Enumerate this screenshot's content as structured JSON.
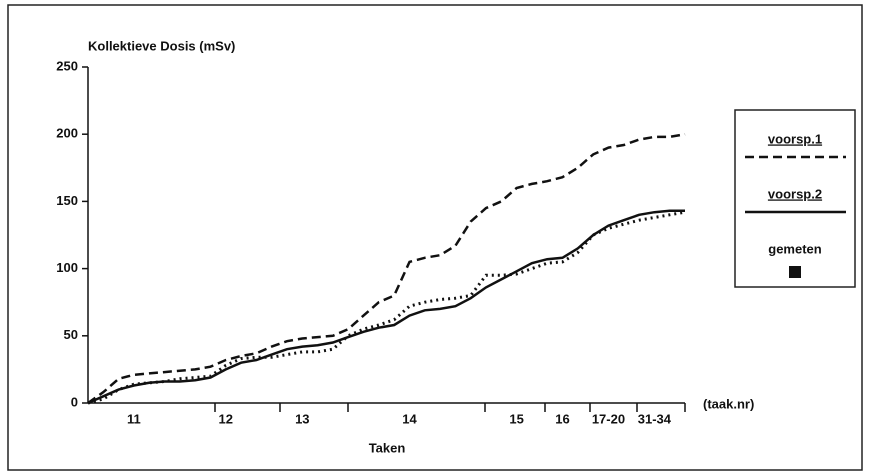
{
  "chart_data": {
    "type": "line",
    "title": "Kollektieve Dosis (mSv)",
    "x_label": "Taken",
    "x_unit_label": "(taak.nr)",
    "categories": [
      null,
      null,
      null,
      "11",
      null,
      null,
      null,
      null,
      null,
      "12",
      null,
      null,
      null,
      null,
      "13",
      null,
      null,
      null,
      null,
      null,
      null,
      "14",
      null,
      null,
      null,
      null,
      null,
      null,
      "15",
      null,
      null,
      "16",
      null,
      null,
      "17-20",
      null,
      null,
      "31-34",
      null,
      null
    ],
    "series": [
      {
        "name": "voorsp.1",
        "color": "#111111",
        "style": "dashed",
        "values": [
          0,
          8,
          18,
          21,
          22,
          23,
          24,
          25,
          27,
          32,
          35,
          37,
          42,
          46,
          48,
          49,
          50,
          55,
          65,
          75,
          80,
          105,
          108,
          110,
          117,
          135,
          145,
          150,
          160,
          163,
          165,
          168,
          175,
          185,
          190,
          192,
          196,
          198,
          198,
          200
        ]
      },
      {
        "name": "voorsp.2",
        "color": "#111111",
        "style": "solid",
        "values": [
          0,
          5,
          10,
          13,
          15,
          16,
          16,
          17,
          19,
          25,
          30,
          32,
          36,
          40,
          42,
          43,
          45,
          49,
          53,
          56,
          58,
          65,
          69,
          70,
          72,
          78,
          86,
          92,
          98,
          104,
          107,
          108,
          115,
          125,
          132,
          136,
          140,
          142,
          143,
          143
        ]
      },
      {
        "name": "gemeten",
        "color": "#111111",
        "style": "dotted",
        "legend_symbol": "square",
        "values": [
          0,
          3,
          10,
          14,
          15,
          16,
          18,
          19,
          20,
          28,
          33,
          34,
          34,
          36,
          38,
          38,
          40,
          50,
          55,
          58,
          62,
          72,
          75,
          77,
          78,
          80,
          95,
          95,
          96,
          100,
          104,
          105,
          112,
          125,
          130,
          133,
          136,
          138,
          140,
          142
        ]
      }
    ],
    "ylim": [
      0,
      250
    ],
    "yticks": [
      0,
      50,
      100,
      150,
      200,
      250
    ],
    "grid": false
  }
}
